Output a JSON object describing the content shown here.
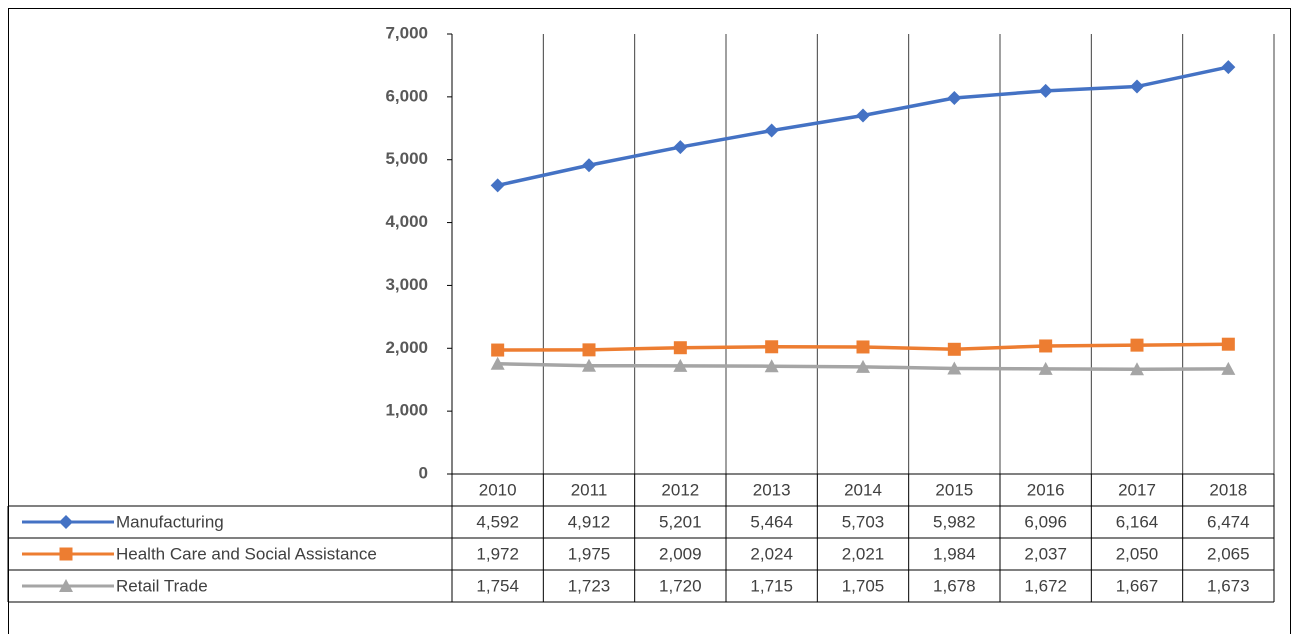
{
  "chart_data": {
    "type": "line",
    "categories": [
      "2010",
      "2011",
      "2012",
      "2013",
      "2014",
      "2015",
      "2016",
      "2017",
      "2018"
    ],
    "series": [
      {
        "name": "Manufacturing",
        "color": "#4472c4",
        "marker": "diamond",
        "values": [
          4592,
          4912,
          5201,
          5464,
          5703,
          5982,
          6096,
          6164,
          6474
        ],
        "value_labels": [
          "4,592",
          "4,912",
          "5,201",
          "5,464",
          "5,703",
          "5,982",
          "6,096",
          "6,164",
          "6,474"
        ]
      },
      {
        "name": "Health Care and Social Assistance",
        "color": "#ed7d31",
        "marker": "square",
        "values": [
          1972,
          1975,
          2009,
          2024,
          2021,
          1984,
          2037,
          2050,
          2065
        ],
        "value_labels": [
          "1,972",
          "1,975",
          "2,009",
          "2,024",
          "2,021",
          "1,984",
          "2,037",
          "2,050",
          "2,065"
        ]
      },
      {
        "name": "Retail Trade",
        "color": "#a5a5a5",
        "marker": "triangle",
        "values": [
          1754,
          1723,
          1720,
          1715,
          1705,
          1678,
          1672,
          1667,
          1673
        ],
        "value_labels": [
          "1,754",
          "1,723",
          "1,720",
          "1,715",
          "1,705",
          "1,678",
          "1,672",
          "1,667",
          "1,673"
        ]
      }
    ],
    "ylim": [
      0,
      7000
    ],
    "yticks": [
      0,
      {
        "value": 1000,
        "label": "1,000"
      },
      {
        "value": 2000,
        "label": "2,000"
      },
      {
        "value": 3000,
        "label": "3,000"
      },
      {
        "value": 4000,
        "label": "4,000"
      },
      {
        "value": 5000,
        "label": "5,000"
      },
      {
        "value": 6000,
        "label": "6,000"
      },
      {
        "value": 7000,
        "label": "7,000"
      }
    ],
    "grid": true
  }
}
